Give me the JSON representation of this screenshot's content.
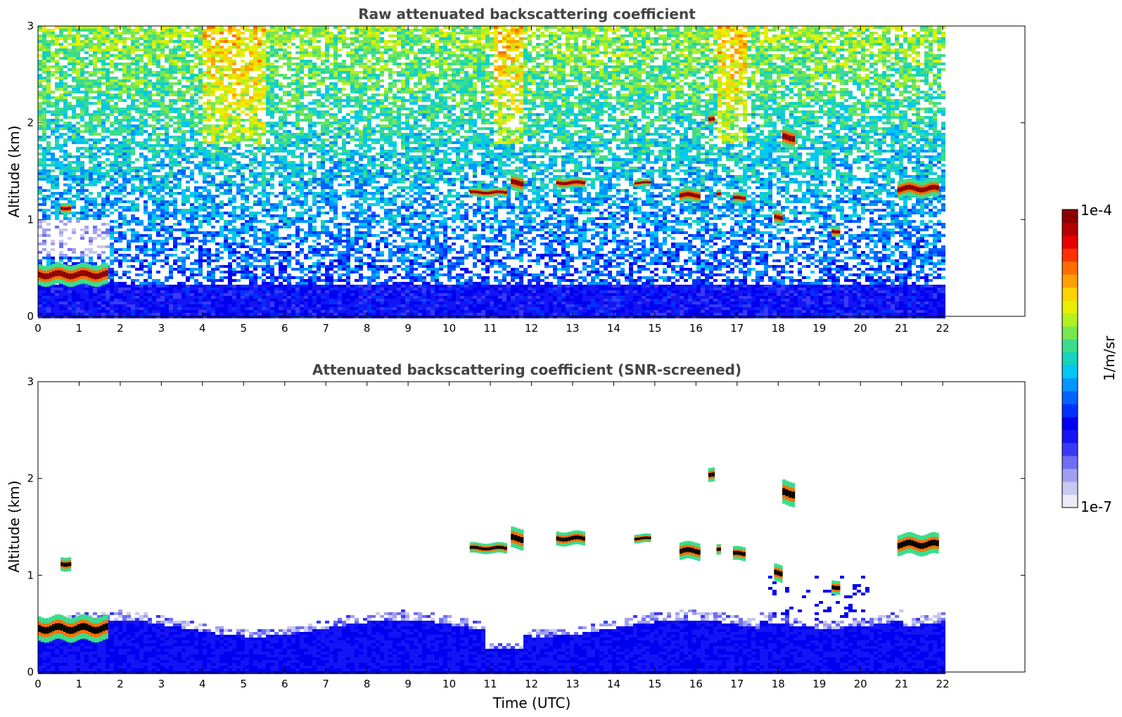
{
  "chart_data": [
    {
      "type": "heatmap",
      "title": "Raw attenuated backscattering coefficient",
      "xlabel": "",
      "ylabel": "Altitude (km)",
      "xlim": [
        0,
        24
      ],
      "ylim": [
        0,
        3
      ],
      "xticks": [
        "0",
        "1",
        "2",
        "3",
        "4",
        "5",
        "6",
        "7",
        "8",
        "9",
        "10",
        "11",
        "12",
        "13",
        "14",
        "15",
        "16",
        "17",
        "18",
        "19",
        "20",
        "21",
        "22"
      ],
      "yticks": [
        "0",
        "1",
        "2",
        "3"
      ],
      "data_extent_hours": [
        0,
        22
      ],
      "noise": "high",
      "layers": [
        {
          "name": "boundary layer",
          "t0": 0.0,
          "t1": 1.7,
          "alt": 0.43,
          "thickness": 0.12
        },
        {
          "t0": 0.55,
          "t1": 0.8,
          "alt": 1.12,
          "thickness": 0.06
        },
        {
          "t0": 10.5,
          "t1": 11.4,
          "alt": 1.28,
          "thickness": 0.05
        },
        {
          "t0": 11.5,
          "t1": 11.8,
          "alt": 1.38,
          "thickness": 0.1
        },
        {
          "t0": 12.6,
          "t1": 13.3,
          "alt": 1.38,
          "thickness": 0.06
        },
        {
          "t0": 14.5,
          "t1": 14.9,
          "alt": 1.38,
          "thickness": 0.04
        },
        {
          "t0": 15.6,
          "t1": 16.1,
          "alt": 1.25,
          "thickness": 0.08
        },
        {
          "t0": 16.3,
          "t1": 16.45,
          "alt": 2.03,
          "thickness": 0.07
        },
        {
          "t0": 16.5,
          "t1": 16.6,
          "alt": 1.26,
          "thickness": 0.05
        },
        {
          "t0": 16.9,
          "t1": 17.2,
          "alt": 1.22,
          "thickness": 0.06
        },
        {
          "t0": 17.9,
          "t1": 18.1,
          "alt": 1.02,
          "thickness": 0.08
        },
        {
          "t0": 18.1,
          "t1": 18.4,
          "alt": 1.85,
          "thickness": 0.12
        },
        {
          "t0": 19.3,
          "t1": 19.5,
          "alt": 0.88,
          "thickness": 0.06
        },
        {
          "t0": 20.9,
          "t1": 21.9,
          "alt": 1.32,
          "thickness": 0.1
        }
      ]
    },
    {
      "type": "heatmap",
      "title": "Attenuated backscattering coefficient (SNR-screened)",
      "xlabel": "Time (UTC)",
      "ylabel": "Altitude (km)",
      "xlim": [
        0,
        24
      ],
      "ylim": [
        0,
        3
      ],
      "xticks": [
        "0",
        "1",
        "2",
        "3",
        "4",
        "5",
        "6",
        "7",
        "8",
        "9",
        "10",
        "11",
        "12",
        "13",
        "14",
        "15",
        "16",
        "17",
        "18",
        "19",
        "20",
        "21",
        "22"
      ],
      "yticks": [
        "0",
        "1",
        "2",
        "3"
      ],
      "data_extent_hours": [
        0,
        22
      ],
      "noise": "screened",
      "layers": [
        {
          "name": "boundary layer",
          "t0": 0.0,
          "t1": 1.7,
          "alt": 0.45,
          "thickness": 0.14
        },
        {
          "t0": 0.55,
          "t1": 0.8,
          "alt": 1.12,
          "thickness": 0.08
        },
        {
          "t0": 10.5,
          "t1": 11.4,
          "alt": 1.28,
          "thickness": 0.06
        },
        {
          "t0": 11.5,
          "t1": 11.8,
          "alt": 1.38,
          "thickness": 0.12
        },
        {
          "t0": 12.6,
          "t1": 13.3,
          "alt": 1.38,
          "thickness": 0.08
        },
        {
          "t0": 14.5,
          "t1": 14.9,
          "alt": 1.38,
          "thickness": 0.05
        },
        {
          "t0": 15.6,
          "t1": 16.1,
          "alt": 1.25,
          "thickness": 0.1
        },
        {
          "t0": 16.3,
          "t1": 16.45,
          "alt": 2.03,
          "thickness": 0.08
        },
        {
          "t0": 16.5,
          "t1": 16.6,
          "alt": 1.26,
          "thickness": 0.06
        },
        {
          "t0": 16.9,
          "t1": 17.2,
          "alt": 1.22,
          "thickness": 0.08
        },
        {
          "t0": 17.9,
          "t1": 18.1,
          "alt": 1.02,
          "thickness": 0.1
        },
        {
          "t0": 18.1,
          "t1": 18.4,
          "alt": 1.85,
          "thickness": 0.14
        },
        {
          "t0": 19.3,
          "t1": 19.5,
          "alt": 0.88,
          "thickness": 0.08
        },
        {
          "t0": 20.9,
          "t1": 21.9,
          "alt": 1.32,
          "thickness": 0.12
        }
      ]
    }
  ],
  "colorbar": {
    "max_label": "1e-4",
    "min_label": "1e-7",
    "unit": "1/m/sr",
    "colors": [
      "#ebebf5",
      "#c8c8f0",
      "#a0a0f0",
      "#6e6ef5",
      "#3a3af5",
      "#1414f5",
      "#0000f0",
      "#0032ff",
      "#0064ff",
      "#0096ff",
      "#00c8f0",
      "#14d2be",
      "#3cdc8c",
      "#78e650",
      "#b4f01e",
      "#e6f000",
      "#ffd200",
      "#ffa000",
      "#ff6e00",
      "#ff3200",
      "#e60000",
      "#b40000",
      "#8c0000"
    ]
  }
}
